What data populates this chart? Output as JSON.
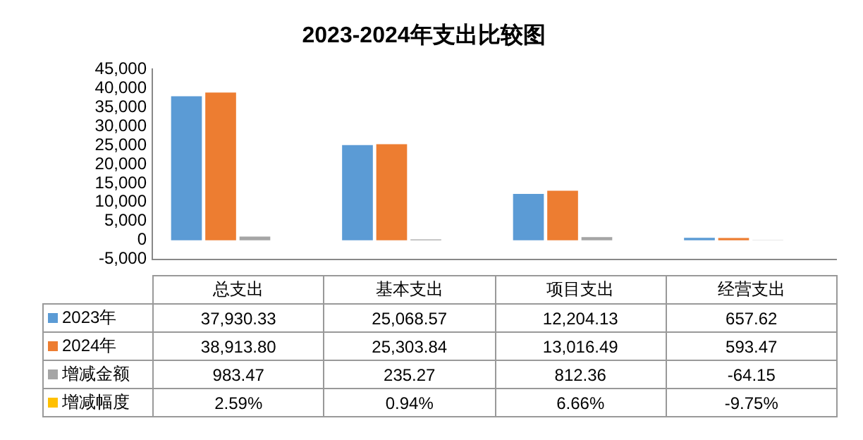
{
  "chart_data": {
    "type": "bar",
    "title": "2023-2024年支出比较图",
    "categories": [
      "总支出",
      "基本支出",
      "项目支出",
      "经营支出"
    ],
    "series": [
      {
        "name": "2023年",
        "color": "#5b9bd5",
        "values": [
          37930.33,
          25068.57,
          12204.13,
          657.62
        ],
        "value_labels": [
          "37,930.33",
          "25,068.57",
          "12,204.13",
          "657.62"
        ]
      },
      {
        "name": "2024年",
        "color": "#ed7d31",
        "values": [
          38913.8,
          25303.84,
          13016.49,
          593.47
        ],
        "value_labels": [
          "38,913.80",
          "25,303.84",
          "13,016.49",
          "593.47"
        ]
      },
      {
        "name": "增减金额",
        "color": "#a5a5a5",
        "values": [
          983.47,
          235.27,
          812.36,
          -64.15
        ],
        "value_labels": [
          "983.47",
          "235.27",
          "812.36",
          "-64.15"
        ]
      },
      {
        "name": "增减幅度",
        "color": "#ffc000",
        "values": [
          0.0259,
          0.0094,
          0.0666,
          -0.0975
        ],
        "value_labels": [
          "2.59%",
          "0.94%",
          "6.66%",
          "-9.75%"
        ]
      }
    ],
    "ylim": [
      -5000,
      45000
    ],
    "yticks": [
      {
        "value": -5000,
        "label": "-5,000"
      },
      {
        "value": 0,
        "label": "0"
      },
      {
        "value": 5000,
        "label": "5,000"
      },
      {
        "value": 10000,
        "label": "10,000"
      },
      {
        "value": 15000,
        "label": "15,000"
      },
      {
        "value": 20000,
        "label": "20,000"
      },
      {
        "value": 25000,
        "label": "25,000"
      },
      {
        "value": 30000,
        "label": "30,000"
      },
      {
        "value": 35000,
        "label": "35,000"
      },
      {
        "value": 40000,
        "label": "40,000"
      },
      {
        "value": 45000,
        "label": "45,000"
      }
    ],
    "legend": "bottom"
  }
}
